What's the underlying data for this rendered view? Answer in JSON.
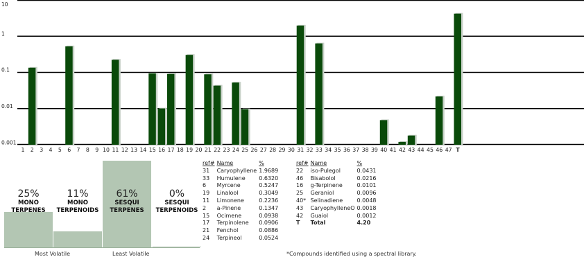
{
  "chart_data": {
    "type": "bar",
    "scale": "log",
    "ylim": [
      0.001,
      10
    ],
    "y_ticks": [
      "10",
      "1",
      "0.1",
      "0.01",
      "0.001"
    ],
    "categories": [
      "1",
      "2",
      "3",
      "4",
      "5",
      "6",
      "7",
      "8",
      "9",
      "10",
      "11",
      "12",
      "13",
      "14",
      "15",
      "16",
      "17",
      "18",
      "19",
      "20",
      "21",
      "22",
      "23",
      "24",
      "25",
      "26",
      "27",
      "28",
      "29",
      "30",
      "31",
      "32",
      "33",
      "34",
      "35",
      "36",
      "37",
      "38",
      "39",
      "40",
      "41",
      "42",
      "43",
      "44",
      "45",
      "46",
      "47",
      "T"
    ],
    "values": [
      null,
      0.1347,
      null,
      null,
      null,
      0.5247,
      null,
      null,
      null,
      null,
      0.2236,
      null,
      null,
      null,
      0.0938,
      0.0101,
      0.0906,
      null,
      0.3049,
      null,
      0.0886,
      0.0431,
      null,
      0.0524,
      0.0096,
      null,
      null,
      null,
      null,
      null,
      1.9689,
      null,
      0.632,
      null,
      null,
      null,
      null,
      null,
      null,
      0.0048,
      null,
      0.0012,
      0.0018,
      null,
      null,
      0.0216,
      null,
      4.2
    ],
    "bar_color": "#0a4a0a",
    "grid": true
  },
  "categories_panel": [
    {
      "pct": "25%",
      "name1": "MONO",
      "name2": "TERPENES",
      "value": 25
    },
    {
      "pct": "11%",
      "name1": "MONO",
      "name2": "TERPENOIDS",
      "value": 11
    },
    {
      "pct": "61%",
      "name1": "SESQUI",
      "name2": "TERPENES",
      "value": 61
    },
    {
      "pct": "0%",
      "name1": "SESQUI",
      "name2": "TERPENOIDS",
      "value": 0
    }
  ],
  "panel_color": "#b3c6b3",
  "footer": {
    "left": "Most Volatile",
    "right": "Least Volatile"
  },
  "table_headers": {
    "ref": "ref#",
    "name": "Name",
    "pct": "%"
  },
  "table_left": [
    {
      "ref": "31",
      "name": "Caryophyllene",
      "pct": "1.9689"
    },
    {
      "ref": "33",
      "name": "Humulene",
      "pct": "0.6320"
    },
    {
      "ref": "6",
      "name": "Myrcene",
      "pct": "0.5247"
    },
    {
      "ref": "19",
      "name": "Linalool",
      "pct": "0.3049"
    },
    {
      "ref": "11",
      "name": "Limonene",
      "pct": "0.2236"
    },
    {
      "ref": "2",
      "name": "a-Pinene",
      "pct": "0.1347"
    },
    {
      "ref": "15",
      "name": "Ocimene",
      "pct": "0.0938"
    },
    {
      "ref": "17",
      "name": "Terpinolene",
      "pct": "0.0906"
    },
    {
      "ref": "21",
      "name": "Fenchol",
      "pct": "0.0886"
    },
    {
      "ref": "24",
      "name": "Terpineol",
      "pct": "0.0524"
    }
  ],
  "table_right": [
    {
      "ref": "22",
      "name": "iso-Pulegol",
      "pct": "0.0431"
    },
    {
      "ref": "46",
      "name": "Bisabolol",
      "pct": "0.0216"
    },
    {
      "ref": "16",
      "name": "g-Terpinene",
      "pct": "0.0101"
    },
    {
      "ref": "25",
      "name": "Geraniol",
      "pct": "0.0096"
    },
    {
      "ref": "40*",
      "name": "Selinadiene",
      "pct": "0.0048"
    },
    {
      "ref": "43",
      "name": "CaryophylleneO",
      "pct": "0.0018"
    },
    {
      "ref": "42",
      "name": "Guaiol",
      "pct": "0.0012"
    },
    {
      "ref": "T",
      "name": "Total",
      "pct": "4.20",
      "total": true
    }
  ],
  "note": "*Compounds identified using a spectral library."
}
